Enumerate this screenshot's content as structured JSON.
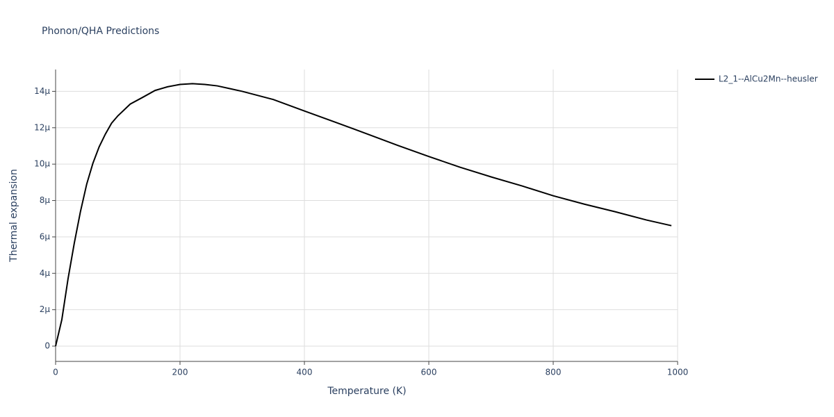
{
  "chart_data": {
    "type": "line",
    "title": "Phonon/QHA Predictions",
    "x_label": "Temperature (K)",
    "y_label": "Thermal expansion",
    "x": [
      0,
      10,
      20,
      30,
      40,
      50,
      60,
      70,
      80,
      90,
      100,
      120,
      140,
      160,
      180,
      200,
      220,
      240,
      260,
      280,
      300,
      350,
      400,
      450,
      500,
      550,
      600,
      650,
      700,
      750,
      800,
      850,
      900,
      950,
      990
    ],
    "series": [
      {
        "name": "L2_1--AlCu2Mn--heusler",
        "color": "#000000",
        "values": [
          0,
          1.45e-06,
          3.7e-06,
          5.65e-06,
          7.4e-06,
          8.9e-06,
          1.005e-05,
          1.095e-05,
          1.165e-05,
          1.225e-05,
          1.265e-05,
          1.33e-05,
          1.367e-05,
          1.405e-05,
          1.425e-05,
          1.438e-05,
          1.442e-05,
          1.438e-05,
          1.43e-05,
          1.415e-05,
          1.4e-05,
          1.355e-05,
          1.292e-05,
          1.23e-05,
          1.167e-05,
          1.103e-05,
          1.042e-05,
          9.83e-06,
          9.3e-06,
          8.8e-06,
          8.26e-06,
          7.8e-06,
          7.38e-06,
          6.93e-06,
          6.62e-06
        ]
      }
    ],
    "xlim": [
      0,
      1000
    ],
    "xticks": [
      0,
      200,
      400,
      600,
      800,
      1000
    ],
    "ylim": [
      -8.4e-07,
      1.52e-05
    ],
    "yticks": [
      0,
      {
        "value": 2e-06,
        "label": "2μ"
      },
      {
        "value": 4e-06,
        "label": "4μ"
      },
      {
        "value": 6e-06,
        "label": "6μ"
      },
      {
        "value": 8e-06,
        "label": "8μ"
      },
      {
        "value": 1e-05,
        "label": "10μ"
      },
      {
        "value": 1.2e-05,
        "label": "12μ"
      },
      {
        "value": 1.4e-05,
        "label": "14μ"
      }
    ],
    "grid": true
  }
}
